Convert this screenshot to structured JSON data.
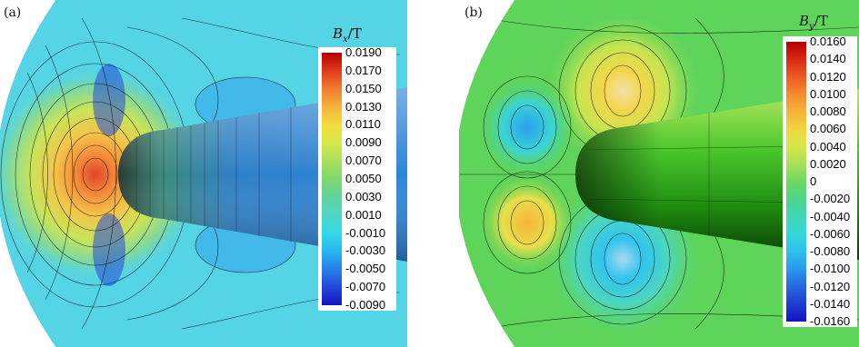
{
  "panels": [
    {
      "id": "a",
      "label": "(a)",
      "colorbar": {
        "title_symbol": "B",
        "title_sub": "x",
        "title_unit": "/T",
        "ticks": [
          "0.0190",
          "0.0170",
          "0.0150",
          "0.0130",
          "0.0110",
          "0.0090",
          "0.0070",
          "0.0050",
          "0.0030",
          "0.0010",
          "-0.0010",
          "-0.0030",
          "-0.0050",
          "-0.0070",
          "-0.0090"
        ],
        "colors": [
          "#b30000",
          "#e03a1c",
          "#f07d2e",
          "#f5b33a",
          "#f2dc3c",
          "#d5e848",
          "#a8e05a",
          "#7fd86f",
          "#5fd49b",
          "#4fd6c6",
          "#35d8e8",
          "#28b6ef",
          "#2580e8",
          "#2348d8",
          "#1414c0"
        ],
        "background": "#55d4e6"
      }
    },
    {
      "id": "b",
      "label": "(b)",
      "colorbar": {
        "title_symbol": "B",
        "title_sub": "y",
        "title_unit": "/T",
        "ticks": [
          "0.0160",
          "0.0140",
          "0.0120",
          "0.0100",
          "0.0080",
          "0.0060",
          "0.0040",
          "0.0020",
          "0",
          "-0.0020",
          "-0.0040",
          "-0.0060",
          "-0.0080",
          "-0.0100",
          "-0.0120",
          "-0.0140",
          "-0.0160"
        ],
        "colors": [
          "#b30000",
          "#d82a14",
          "#ee5a24",
          "#f58b2e",
          "#f5b33a",
          "#f0d63e",
          "#d5e848",
          "#a8e05a",
          "#6cd85f",
          "#4ed48c",
          "#3fd6b8",
          "#34d6da",
          "#2ec0ee",
          "#2898ec",
          "#2468e0",
          "#1f3ccf",
          "#1414c0"
        ],
        "background": "#5ed45a"
      }
    }
  ]
}
